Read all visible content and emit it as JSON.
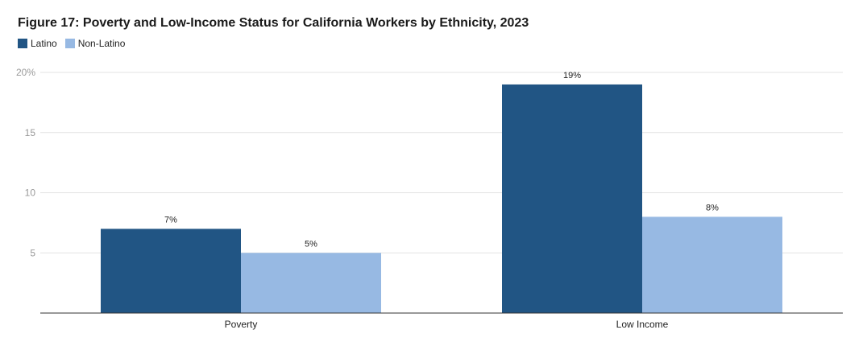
{
  "chart_data": {
    "type": "bar",
    "title": "Figure 17: Poverty and Low-Income Status for California Workers by Ethnicity, 2023",
    "categories": [
      "Poverty",
      "Low Income"
    ],
    "series": [
      {
        "name": "Latino",
        "values": [
          7,
          19
        ],
        "color": "#215584",
        "labels": [
          "7%",
          "19%"
        ]
      },
      {
        "name": "Non-Latino",
        "values": [
          5,
          8
        ],
        "color": "#97b9e3",
        "labels": [
          "5%",
          "8%"
        ]
      }
    ],
    "ylim": [
      0,
      20
    ],
    "yticks": [
      {
        "value": 5,
        "label": "5"
      },
      {
        "value": 10,
        "label": "10"
      },
      {
        "value": 15,
        "label": "15"
      },
      {
        "value": 20,
        "label": "20%"
      }
    ],
    "grid": true,
    "legend_position": "top-left"
  }
}
